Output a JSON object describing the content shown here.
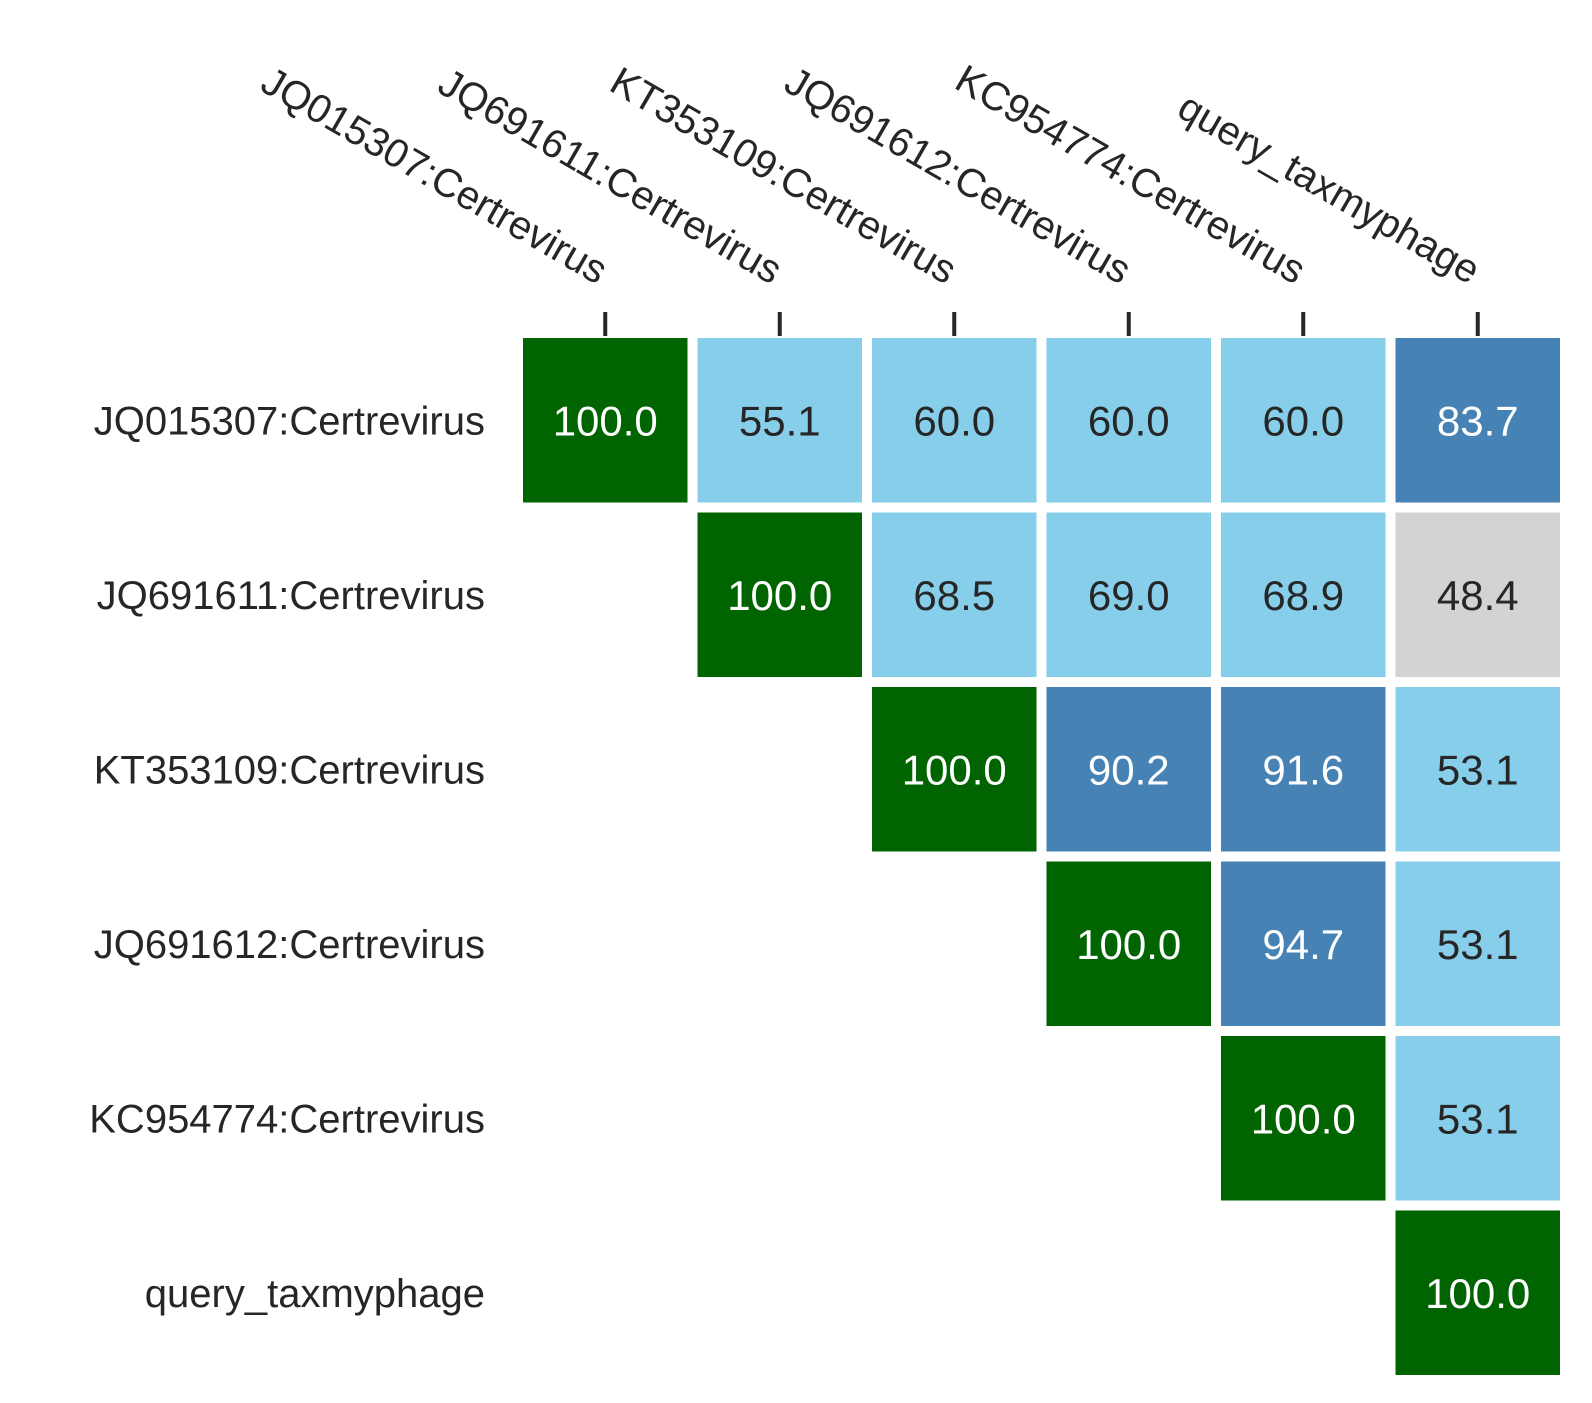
{
  "chart_data": {
    "type": "heatmap",
    "title": "",
    "xlabel": "",
    "ylabel": "",
    "labels": [
      "JQ015307:Certrevirus",
      "JQ691611:Certrevirus",
      "KT353109:Certrevirus",
      "JQ691612:Certrevirus",
      "KC954774:Certrevirus",
      "query_taxmyphage"
    ],
    "layout": "upper-triangle",
    "x_tick_position": "top",
    "values": [
      [
        100.0,
        55.1,
        60.0,
        60.0,
        60.0,
        83.7
      ],
      [
        null,
        100.0,
        68.5,
        69.0,
        68.9,
        48.4
      ],
      [
        null,
        null,
        100.0,
        90.2,
        91.6,
        53.1
      ],
      [
        null,
        null,
        null,
        100.0,
        94.7,
        53.1
      ],
      [
        null,
        null,
        null,
        null,
        100.0,
        53.1
      ],
      [
        null,
        null,
        null,
        null,
        null,
        100.0
      ]
    ],
    "color_bins": [
      {
        "min": 100,
        "color": "#006400",
        "text_color": "#ffffff"
      },
      {
        "min": 70,
        "color": "#4682b4",
        "text_color": "#ffffff"
      },
      {
        "min": 50,
        "color": "#87ceeb",
        "text_color": "#262626"
      },
      {
        "min": 0,
        "color": "#d3d3d3",
        "text_color": "#262626"
      }
    ],
    "grid": false,
    "legend": "none"
  }
}
